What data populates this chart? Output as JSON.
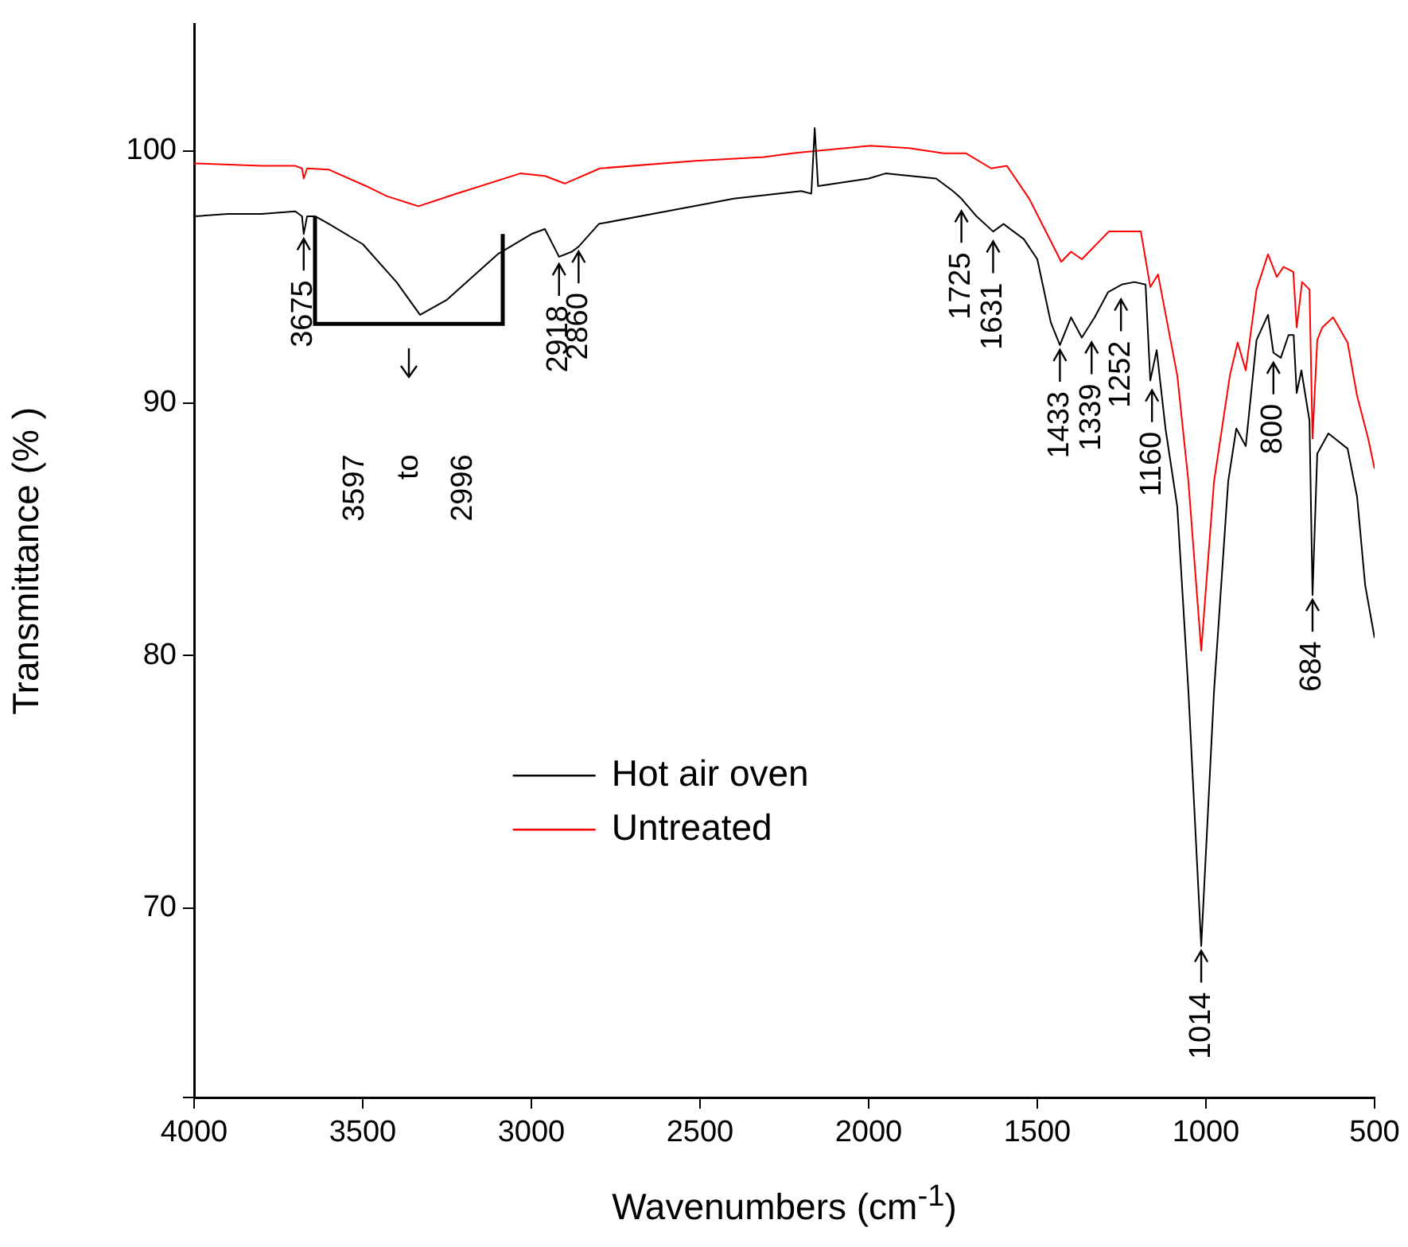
{
  "chart_data": {
    "type": "line",
    "xlabel": "Wavenumbers (cm$^{-1}$)",
    "ylabel": "Transmittance (% )",
    "xlim": [
      4000,
      500
    ],
    "xticks": [
      4000,
      3500,
      3000,
      2500,
      2000,
      1500,
      1000,
      500
    ],
    "ylim": [
      62.5,
      105
    ],
    "yticks": [
      {
        "value": 62.5,
        "label": null
      },
      70,
      80,
      90,
      100
    ],
    "grid": false,
    "legend": "center left",
    "marker": "none",
    "series": [
      {
        "name": "Hot air oven",
        "color": "#000000",
        "x": [
          4000,
          3900,
          3800,
          3700,
          3680,
          3675,
          3665,
          3640,
          3600,
          3500,
          3400,
          3330,
          3250,
          3200,
          3100,
          3000,
          2960,
          2918,
          2880,
          2860,
          2800,
          2600,
          2400,
          2200,
          2170,
          2160,
          2150,
          2000,
          1950,
          1800,
          1750,
          1725,
          1680,
          1631,
          1600,
          1540,
          1500,
          1460,
          1433,
          1400,
          1368,
          1330,
          1290,
          1250,
          1212,
          1179,
          1165,
          1146,
          1120,
          1085,
          1052,
          1014,
          976,
          934,
          910,
          882,
          850,
          816,
          800,
          778,
          755,
          740,
          731,
          717,
          693,
          684,
          670,
          637,
          580,
          552,
          528,
          500
        ],
        "values": [
          97.4,
          97.5,
          97.5,
          97.6,
          97.4,
          96.7,
          97.4,
          97.4,
          97.1,
          96.3,
          94.8,
          93.5,
          94.1,
          94.7,
          95.9,
          96.7,
          96.9,
          95.8,
          96.0,
          96.2,
          97.1,
          97.6,
          98.1,
          98.4,
          98.3,
          100.9,
          98.6,
          98.9,
          99.1,
          98.9,
          98.4,
          98.1,
          97.4,
          96.8,
          97.1,
          96.5,
          95.7,
          93.2,
          92.3,
          93.4,
          92.6,
          93.4,
          94.4,
          94.7,
          94.8,
          94.7,
          90.9,
          92.1,
          89.0,
          85.9,
          78.6,
          68.5,
          78.6,
          86.9,
          89.0,
          88.3,
          92.5,
          93.5,
          92.0,
          91.8,
          92.7,
          92.7,
          90.4,
          91.3,
          89.3,
          82.4,
          88.0,
          88.8,
          88.2,
          86.3,
          82.8,
          80.7
        ]
      },
      {
        "name": "Untreated",
        "color": "#ff0000",
        "x": [
          4000,
          3800,
          3700,
          3680,
          3675,
          3665,
          3600,
          3490,
          3429,
          3335,
          3222,
          3033,
          2960,
          2901,
          2797,
          2514,
          2311,
          2226,
          1995,
          1880,
          1778,
          1712,
          1637,
          1590,
          1524,
          1429,
          1400,
          1368,
          1288,
          1193,
          1165,
          1142,
          1085,
          1052,
          1014,
          976,
          929,
          906,
          882,
          850,
          816,
          790,
          770,
          741,
          731,
          715,
          693,
          684,
          670,
          655,
          623,
          580,
          552,
          519,
          500
        ],
        "values": [
          99.5,
          99.4,
          99.4,
          99.3,
          98.9,
          99.3,
          99.25,
          98.6,
          98.2,
          97.8,
          98.3,
          99.1,
          99.0,
          98.7,
          99.3,
          99.6,
          99.75,
          99.9,
          100.2,
          100.1,
          99.9,
          99.9,
          99.3,
          99.4,
          98.1,
          95.6,
          96.0,
          95.7,
          96.8,
          96.8,
          94.6,
          95.1,
          91.1,
          86.9,
          80.2,
          86.9,
          91.1,
          92.4,
          91.3,
          94.5,
          95.9,
          95.0,
          95.4,
          95.2,
          93.0,
          94.8,
          94.5,
          88.6,
          92.5,
          93.0,
          93.4,
          92.4,
          90.3,
          88.6,
          87.4
        ]
      }
    ],
    "annotations": [
      "3597 to 2996",
      {
        "text": "3675",
        "x": 3675,
        "y": 96.7
      },
      {
        "text": "2918",
        "x": 2918,
        "y": 95.7
      },
      {
        "text": "2860",
        "x": 2860,
        "y": 96.2
      },
      {
        "text": "1725",
        "x": 1725,
        "y": 97.8
      },
      {
        "text": "1631",
        "x": 1631,
        "y": 96.6
      },
      {
        "text": "1433",
        "x": 1433,
        "y": 92.3
      },
      {
        "text": "1339",
        "x": 1339,
        "y": 92.6
      },
      {
        "text": "1252",
        "x": 1252,
        "y": 94.3
      },
      {
        "text": "1160",
        "x": 1160,
        "y": 90.7
      },
      {
        "text": "1014",
        "x": 1014,
        "y": 68.5
      },
      {
        "text": "800",
        "x": 800,
        "y": 91.8
      },
      {
        "text": "684",
        "x": 684,
        "y": 82.4
      }
    ]
  }
}
